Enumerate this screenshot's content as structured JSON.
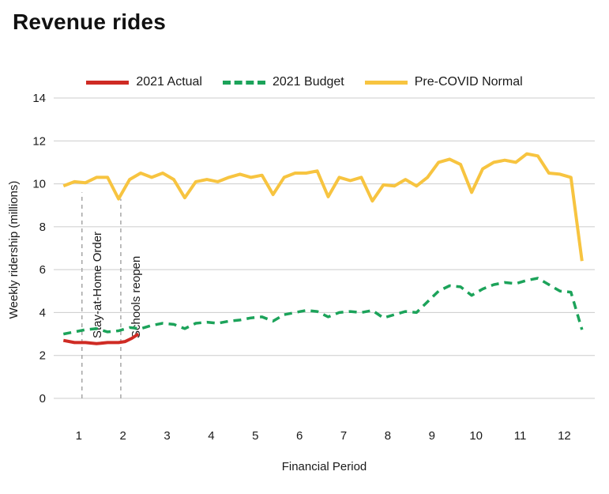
{
  "title": "Revenue rides",
  "chart_data": {
    "type": "line",
    "title": "Revenue rides",
    "xlabel": "Financial Period",
    "ylabel": "Weekly ridership (millions)",
    "xlim": [
      0.43,
      12.69
    ],
    "ylim": [
      0,
      14
    ],
    "xticks": [
      1,
      2,
      3,
      4,
      5,
      6,
      7,
      8,
      9,
      10,
      11,
      12
    ],
    "yticks": [
      0,
      2,
      4,
      6,
      8,
      10,
      12,
      14
    ],
    "grid": "horizontal",
    "legend_position": "top",
    "series": [
      {
        "name": "2021 Actual",
        "color": "#cf2b24",
        "dash": "solid",
        "x": [
          0.65,
          0.9,
          1.15,
          1.4,
          1.65,
          1.9,
          2.05,
          2.2,
          2.35
        ],
        "values": [
          2.7,
          2.6,
          2.6,
          2.55,
          2.6,
          2.6,
          2.65,
          2.8,
          3.0
        ]
      },
      {
        "name": "2021 Budget",
        "color": "#1ca35a",
        "dash": "dashed",
        "x": [
          0.65,
          0.9,
          1.15,
          1.4,
          1.65,
          1.9,
          2.15,
          2.4,
          2.65,
          2.9,
          3.15,
          3.4,
          3.65,
          3.9,
          4.15,
          4.4,
          4.65,
          4.9,
          5.15,
          5.4,
          5.65,
          5.9,
          6.15,
          6.4,
          6.65,
          6.9,
          7.15,
          7.4,
          7.65,
          7.9,
          8.15,
          8.4,
          8.65,
          8.9,
          9.15,
          9.4,
          9.65,
          9.9,
          10.15,
          10.4,
          10.65,
          10.9,
          11.15,
          11.4,
          11.65,
          11.9,
          12.15,
          12.4
        ],
        "values": [
          3.0,
          3.1,
          3.2,
          3.25,
          3.1,
          3.15,
          3.3,
          3.25,
          3.4,
          3.5,
          3.45,
          3.25,
          3.5,
          3.55,
          3.5,
          3.6,
          3.65,
          3.75,
          3.8,
          3.6,
          3.9,
          4.0,
          4.1,
          4.05,
          3.8,
          4.0,
          4.05,
          4.0,
          4.1,
          3.75,
          3.9,
          4.05,
          4.0,
          4.5,
          5.0,
          5.25,
          5.2,
          4.8,
          5.1,
          5.3,
          5.4,
          5.35,
          5.5,
          5.6,
          5.3,
          5.0,
          4.95,
          3.2
        ]
      },
      {
        "name": "Pre-COVID Normal",
        "color": "#f7c440",
        "dash": "solid",
        "x": [
          0.65,
          0.9,
          1.15,
          1.4,
          1.65,
          1.9,
          2.15,
          2.4,
          2.65,
          2.9,
          3.15,
          3.4,
          3.65,
          3.9,
          4.15,
          4.4,
          4.65,
          4.9,
          5.15,
          5.4,
          5.65,
          5.9,
          6.15,
          6.4,
          6.65,
          6.9,
          7.15,
          7.4,
          7.65,
          7.9,
          8.15,
          8.4,
          8.65,
          8.9,
          9.15,
          9.4,
          9.65,
          9.9,
          10.15,
          10.4,
          10.65,
          10.9,
          11.15,
          11.4,
          11.65,
          11.9,
          12.15,
          12.4
        ],
        "values": [
          9.9,
          10.1,
          10.05,
          10.3,
          10.3,
          9.3,
          10.2,
          10.5,
          10.3,
          10.5,
          10.2,
          9.35,
          10.1,
          10.2,
          10.1,
          10.3,
          10.45,
          10.3,
          10.4,
          9.5,
          10.3,
          10.5,
          10.5,
          10.6,
          9.4,
          10.3,
          10.15,
          10.3,
          9.2,
          9.95,
          9.9,
          10.2,
          9.9,
          10.3,
          11.0,
          11.15,
          10.9,
          9.6,
          10.7,
          11.0,
          11.1,
          11.0,
          11.4,
          11.3,
          10.5,
          10.45,
          10.3,
          6.4
        ]
      }
    ],
    "annotations": [
      {
        "x": 1.07,
        "label": "Stay-at-Home Order",
        "line_top": 9.6
      },
      {
        "x": 1.95,
        "label": "Schools reopen",
        "line_top": 9.3
      }
    ]
  },
  "colors": {
    "grid": "#cccccc",
    "annotation_line": "#a6a6a6",
    "axis_text": "#1a1a1a"
  }
}
